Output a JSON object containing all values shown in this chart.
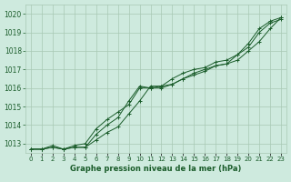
{
  "title": "Graphe pression niveau de la mer (hPa)",
  "background_color": "#ceeade",
  "grid_color": "#a8c8b4",
  "line_color": "#1a5c2a",
  "x_labels": [
    "0",
    "1",
    "2",
    "3",
    "4",
    "5",
    "6",
    "7",
    "8",
    "9",
    "10",
    "11",
    "12",
    "13",
    "14",
    "15",
    "16",
    "17",
    "18",
    "19",
    "20",
    "21",
    "22",
    "23"
  ],
  "ylim": [
    1012.5,
    1020.5
  ],
  "yticks": [
    1013,
    1014,
    1015,
    1016,
    1017,
    1018,
    1019,
    1020
  ],
  "series": [
    [
      1012.7,
      1012.7,
      1012.8,
      1012.7,
      1012.8,
      1012.8,
      1013.5,
      1014.0,
      1014.4,
      1015.3,
      1016.1,
      1016.0,
      1016.1,
      1016.5,
      1016.8,
      1017.0,
      1017.1,
      1017.4,
      1017.5,
      1017.8,
      1018.2,
      1019.0,
      1019.5,
      1019.7
    ],
    [
      1012.7,
      1012.7,
      1012.9,
      1012.7,
      1012.9,
      1013.0,
      1013.8,
      1014.3,
      1014.7,
      1015.1,
      1016.0,
      1016.0,
      1016.0,
      1016.2,
      1016.5,
      1016.7,
      1016.9,
      1017.2,
      1017.3,
      1017.5,
      1018.0,
      1018.5,
      1019.2,
      1019.8
    ],
    [
      1012.7,
      1012.7,
      1012.8,
      1012.7,
      1012.8,
      1012.8,
      1013.2,
      1013.6,
      1013.9,
      1014.6,
      1015.3,
      1016.1,
      1016.1,
      1016.2,
      1016.5,
      1016.8,
      1017.0,
      1017.2,
      1017.3,
      1017.8,
      1018.4,
      1019.2,
      1019.6,
      1019.8
    ]
  ],
  "fig_width": 3.2,
  "fig_height": 2.0,
  "dpi": 100
}
